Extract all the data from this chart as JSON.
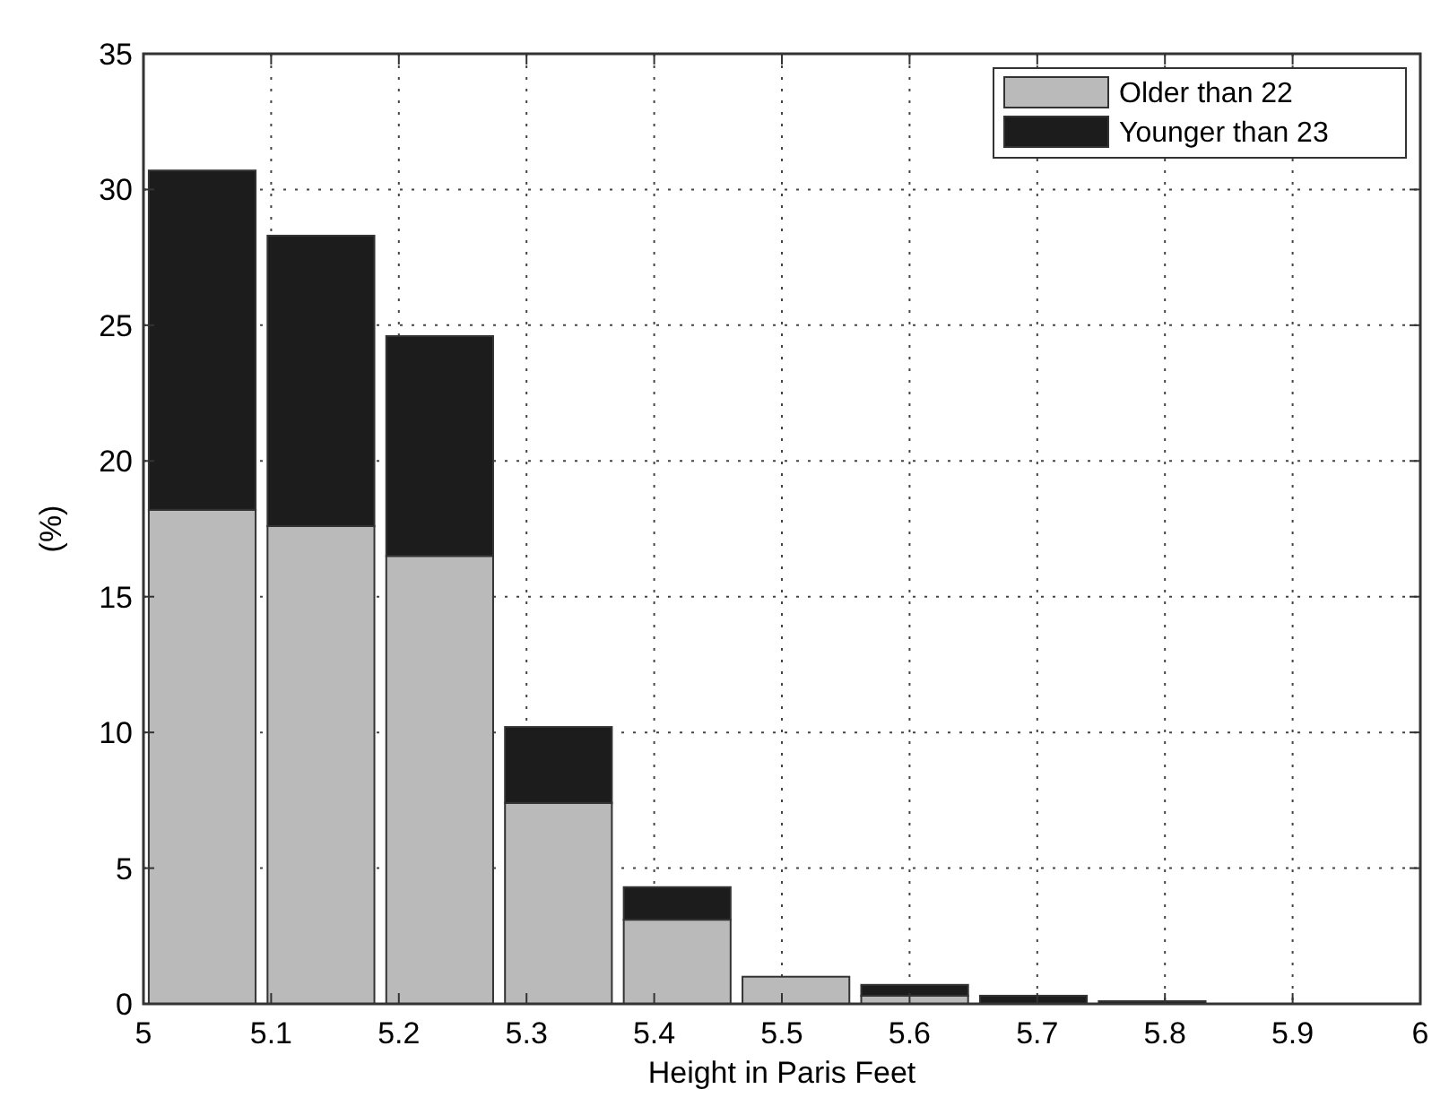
{
  "chart_data": {
    "type": "bar",
    "stacked": true,
    "xlabel": "Height in Paris Feet",
    "ylabel": "(%)",
    "x": [
      5.046,
      5.139,
      5.232,
      5.325,
      5.418,
      5.511,
      5.604,
      5.697,
      5.79
    ],
    "series": [
      {
        "name": "Older than 22",
        "color": "#bababa",
        "values": [
          18.2,
          17.6,
          16.5,
          7.4,
          3.1,
          1.0,
          0.3,
          null,
          0
        ]
      },
      {
        "name": "Younger than 23",
        "color": "#1c1c1c",
        "values": [
          12.5,
          10.7,
          8.1,
          2.8,
          1.2,
          0,
          0.4,
          0.3,
          0.1
        ]
      }
    ],
    "xlim": [
      5,
      6
    ],
    "xticks": [
      5,
      5.1,
      5.2,
      5.3,
      5.4,
      5.5,
      5.6,
      5.7,
      5.8,
      5.9,
      6
    ],
    "ylim": [
      0,
      35
    ],
    "yticks": [
      0,
      5,
      10,
      15,
      20,
      25,
      30,
      35
    ],
    "grid": true,
    "legend": "top right"
  }
}
